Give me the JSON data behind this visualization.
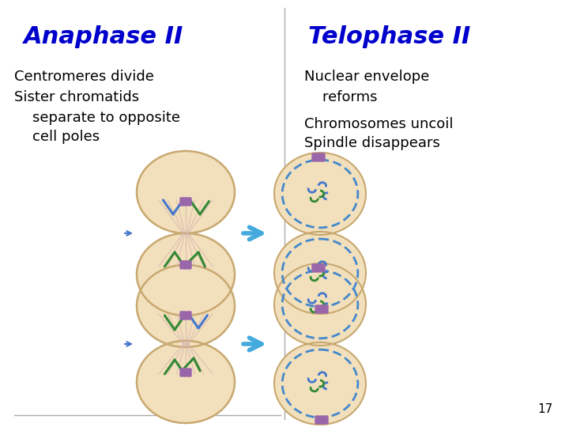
{
  "title_left": "Anaphase II",
  "title_right": "Telophase II",
  "title_color": "#0000cc",
  "title_fontsize": 22,
  "left_bullet1": "Centromeres divide",
  "left_bullet2": "Sister chromatids",
  "left_bullet3": "    separate to opposite",
  "left_bullet4": "    cell poles",
  "right_bullet1": "Nuclear envelope",
  "right_bullet2": "    reforms",
  "right_bullet3": "Chromosomes uncoil",
  "right_bullet4": "Spindle disappears",
  "text_color": "#000000",
  "text_fontsize": 13,
  "bg_color": "#ffffff",
  "page_number": "17",
  "cell_bg": "#f2e0bc",
  "cell_border": "#c8a870",
  "spindle_color": "#d4b0b0",
  "chromatid_blue": "#4477cc",
  "chromatid_green": "#338833",
  "chromatid_purple": "#aa77bb",
  "centromere_purple": "#9966aa",
  "nuclear_border": "#4488cc",
  "arrow_color": "#44aadd"
}
